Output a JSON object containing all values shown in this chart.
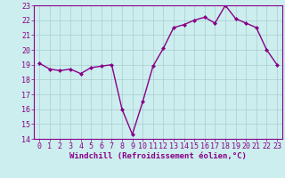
{
  "x": [
    0,
    1,
    2,
    3,
    4,
    5,
    6,
    7,
    8,
    9,
    10,
    11,
    12,
    13,
    14,
    15,
    16,
    17,
    18,
    19,
    20,
    21,
    22,
    23
  ],
  "y": [
    19.1,
    18.7,
    18.6,
    18.7,
    18.4,
    18.8,
    18.9,
    19.0,
    16.0,
    14.3,
    16.5,
    18.9,
    20.1,
    21.5,
    21.7,
    22.0,
    22.2,
    21.8,
    23.0,
    22.1,
    21.8,
    21.5,
    20.0,
    19.0
  ],
  "line_color": "#880088",
  "marker": "D",
  "marker_size": 2,
  "bg_color": "#cceeee",
  "grid_color": "#aacccc",
  "xlabel": "Windchill (Refroidissement éolien,°C)",
  "xlim": [
    -0.5,
    23.5
  ],
  "ylim": [
    14,
    23
  ],
  "yticks": [
    14,
    15,
    16,
    17,
    18,
    19,
    20,
    21,
    22,
    23
  ],
  "xticks": [
    0,
    1,
    2,
    3,
    4,
    5,
    6,
    7,
    8,
    9,
    10,
    11,
    12,
    13,
    14,
    15,
    16,
    17,
    18,
    19,
    20,
    21,
    22,
    23
  ],
  "xlabel_fontsize": 6.5,
  "tick_fontsize": 6,
  "line_width": 1.0,
  "spine_color": "#880088"
}
